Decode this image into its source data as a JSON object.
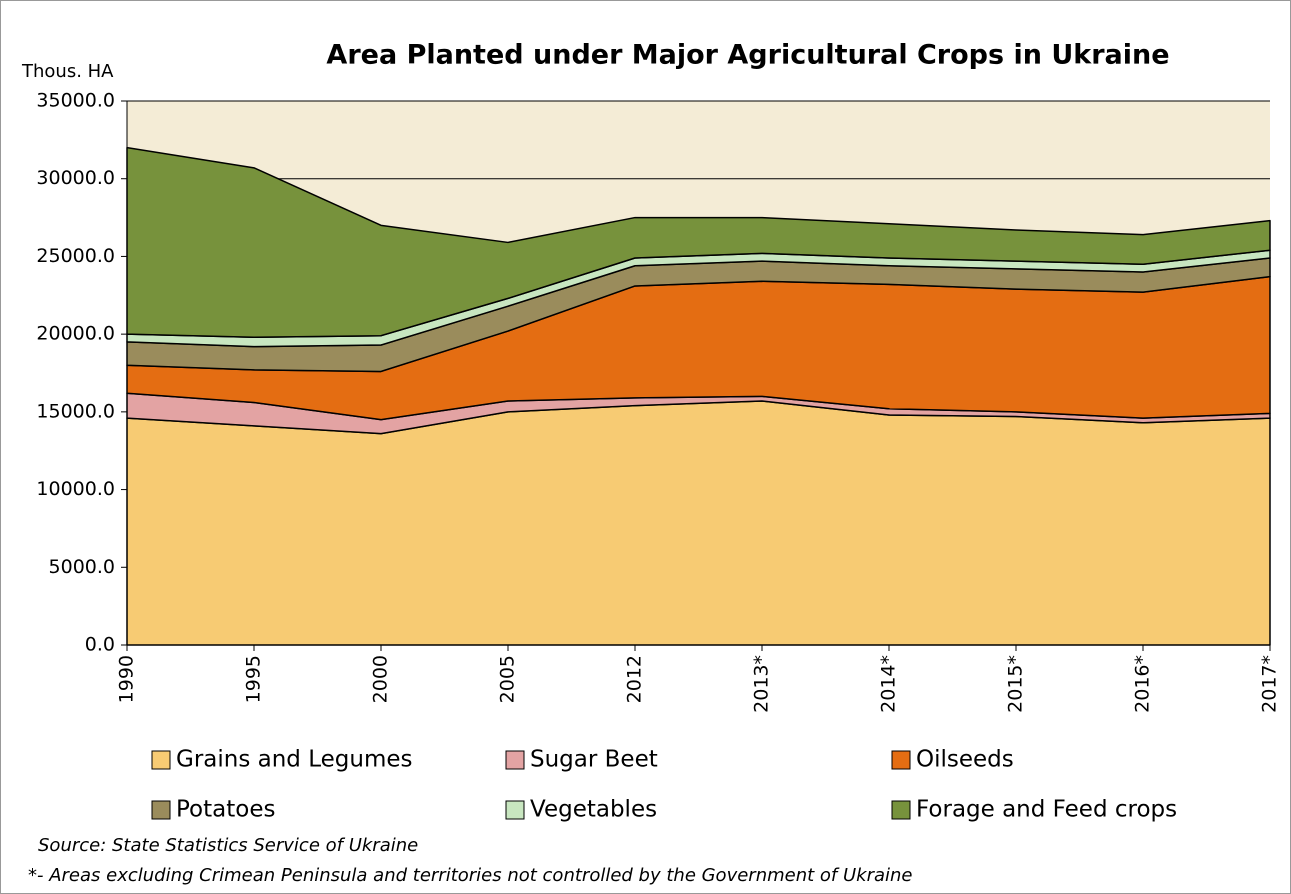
{
  "chart_data": {
    "type": "stacked_area",
    "title": "Area Planted under Major Agricultural Crops in Ukraine",
    "y_axis_label": "Thous. HA",
    "categories": [
      "1990",
      "1995",
      "2000",
      "2005",
      "2012",
      "2013*",
      "2014*",
      "2015*",
      "2016*",
      "2017*"
    ],
    "series": [
      {
        "name": "Grains and Legumes",
        "color": "#f7cb73",
        "values": [
          14600,
          14100,
          13600,
          15000,
          15400,
          15700,
          14800,
          14700,
          14300,
          14600
        ]
      },
      {
        "name": "Sugar Beet",
        "color": "#e3a3a3",
        "values": [
          1600,
          1500,
          900,
          700,
          500,
          300,
          400,
          300,
          300,
          300
        ]
      },
      {
        "name": "Oilseeds",
        "color": "#e46d12",
        "values": [
          1800,
          2100,
          3100,
          4500,
          7200,
          7400,
          8000,
          7900,
          8100,
          8800
        ]
      },
      {
        "name": "Potatoes",
        "color": "#9a8c5c",
        "values": [
          1500,
          1500,
          1700,
          1600,
          1300,
          1300,
          1200,
          1300,
          1300,
          1200
        ]
      },
      {
        "name": "Vegetables",
        "color": "#c8e6c0",
        "values": [
          500,
          600,
          600,
          500,
          500,
          500,
          500,
          500,
          500,
          500
        ]
      },
      {
        "name": "Forage and Feed crops",
        "color": "#77923c",
        "values": [
          12000,
          10900,
          7100,
          3600,
          2600,
          2300,
          2200,
          2000,
          1900,
          1900
        ]
      }
    ],
    "ylim": [
      0,
      35000
    ],
    "yticks": [
      {
        "value": 0,
        "label": "0.0"
      },
      {
        "value": 5000,
        "label": "5000.0"
      },
      {
        "value": 10000,
        "label": "10000.0"
      },
      {
        "value": 15000,
        "label": "15000.0"
      },
      {
        "value": 20000,
        "label": "20000.0"
      },
      {
        "value": 25000,
        "label": "25000.0"
      },
      {
        "value": 30000,
        "label": "30000.0"
      },
      {
        "value": 35000,
        "label": "35000.0"
      }
    ],
    "grid": true,
    "background": "#f4ecd6",
    "source": "Source:  State  Statistics  Service of  Ukraine",
    "footnote": "*- Areas excluding Crimean Peninsula and territories not controlled by the Government of Ukraine"
  }
}
